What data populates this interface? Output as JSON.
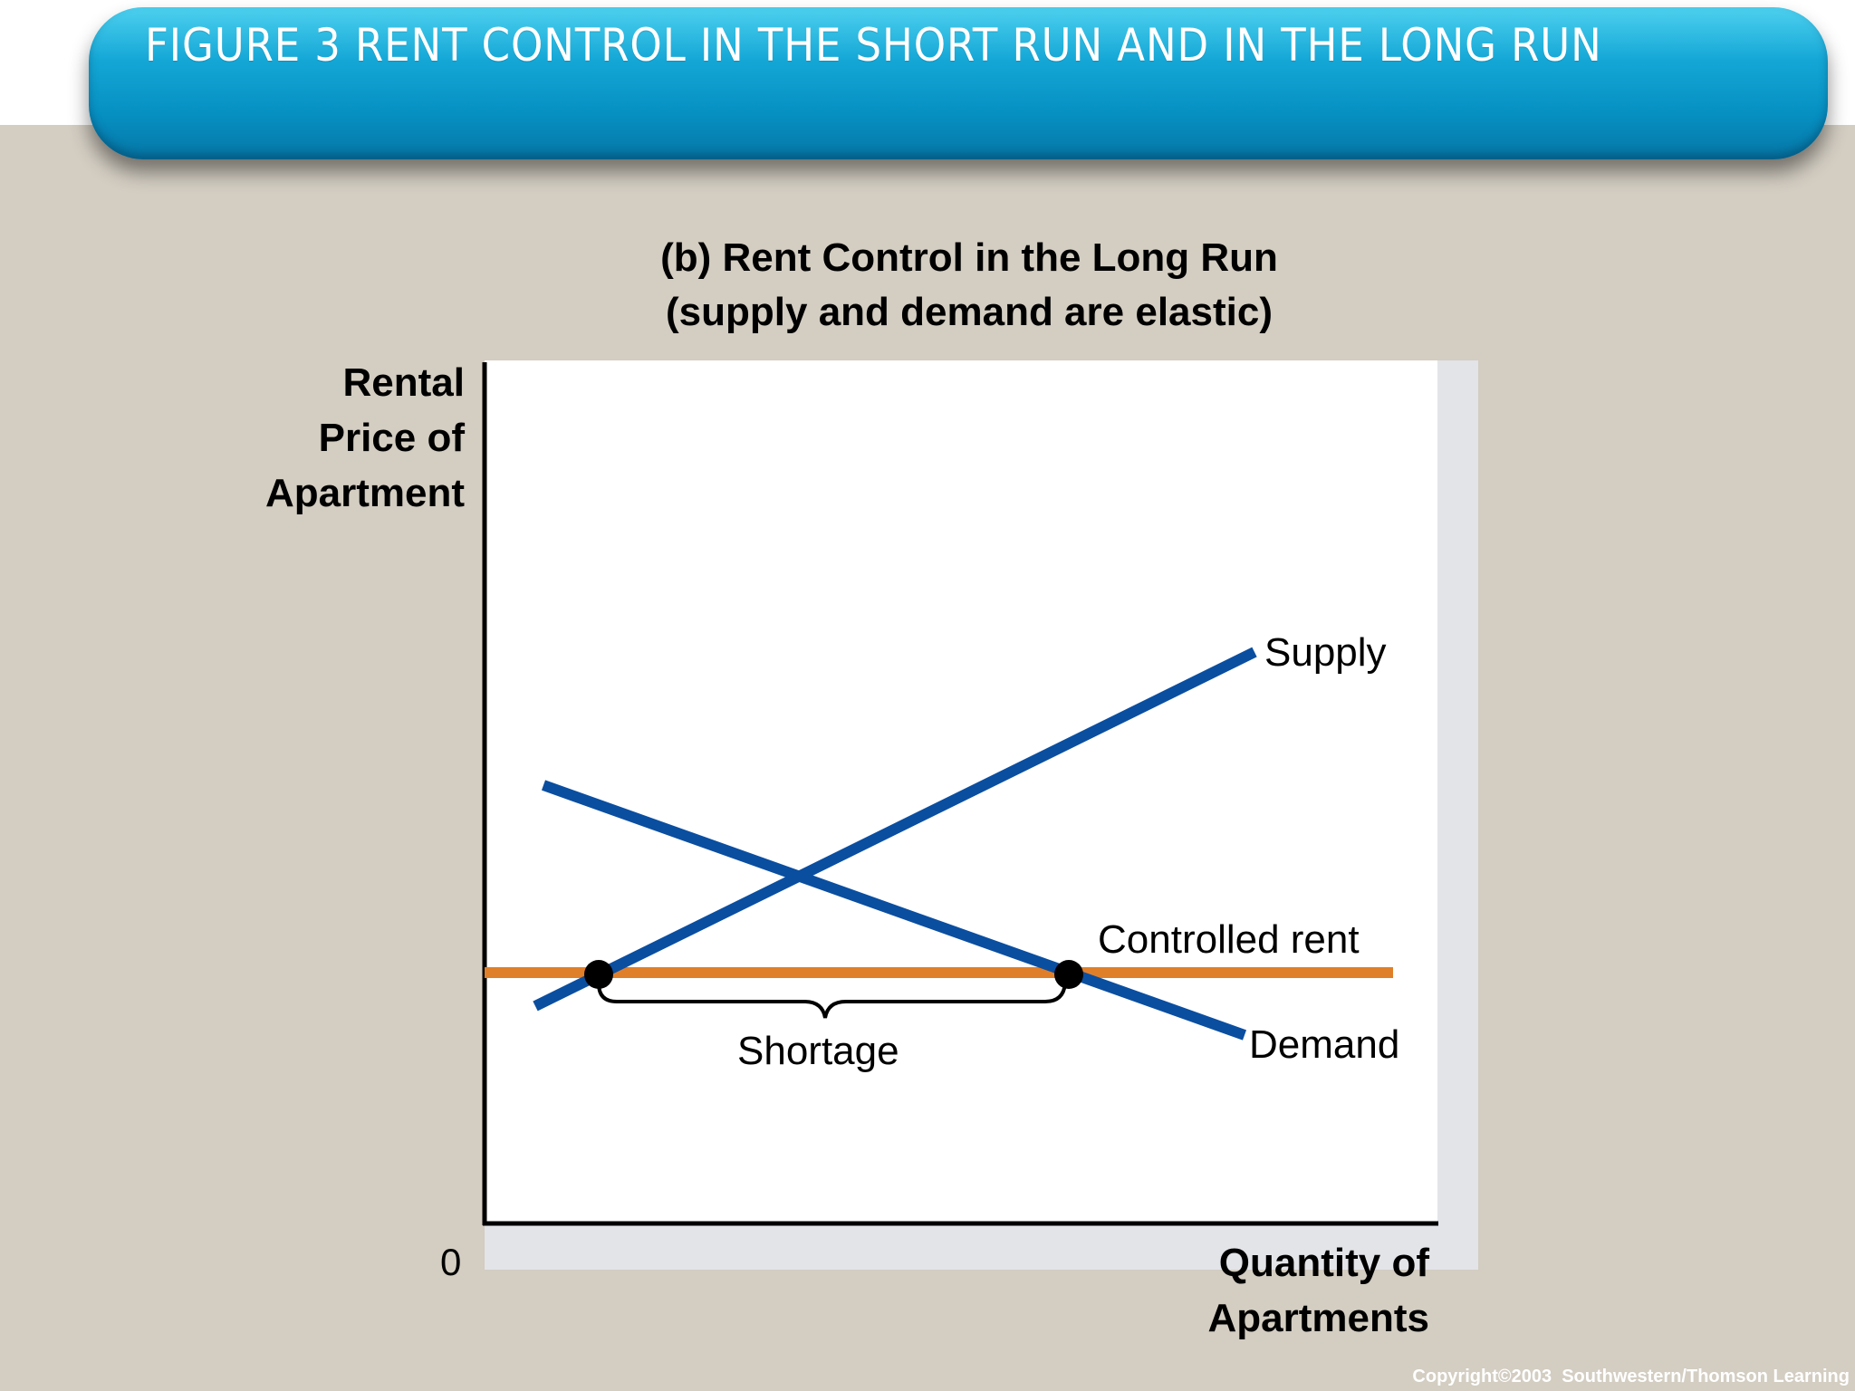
{
  "slide": {
    "title": "Figure 3 Rent Control in the Short Run and in the Long Run",
    "copyright": "Copyright©2003  Southwestern/Thomson Learning"
  },
  "figure": {
    "subtitle_line1": "(b) Rent Control in the Long Run",
    "subtitle_line2": "(supply and demand are elastic)",
    "y_axis_label": [
      "Rental",
      "Price of",
      "Apartment"
    ],
    "x_axis_label": [
      "Quantity of",
      "Apartments"
    ],
    "origin_label": "0",
    "supply_label": "Supply",
    "demand_label": "Demand",
    "controlled_rent_label": "Controlled rent",
    "shortage_label": "Shortage",
    "colors": {
      "supply_demand": "#0a4ea0",
      "controlled_rent": "#e07f2a",
      "banner": "#0a9fd2",
      "background": "#d3cdc2"
    }
  }
}
